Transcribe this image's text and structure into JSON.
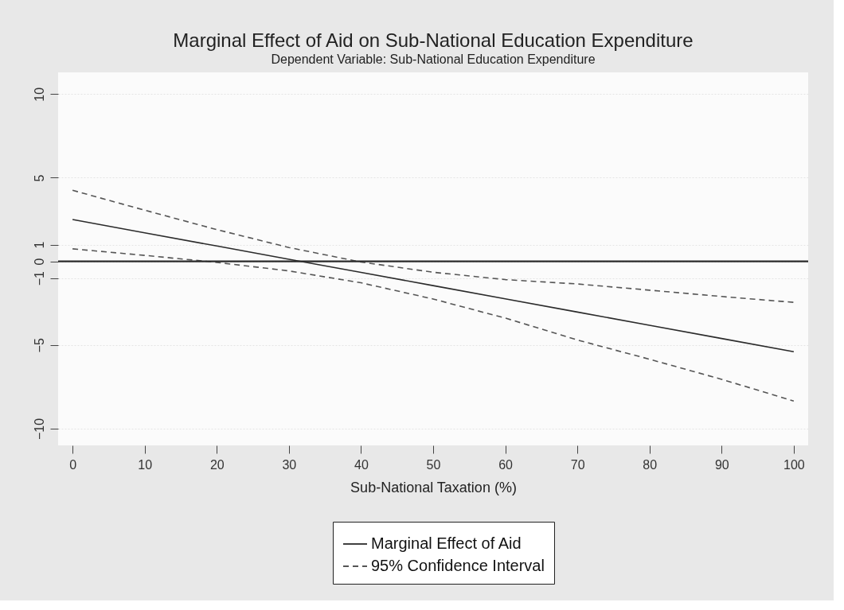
{
  "chart_data": {
    "type": "line",
    "title": "Marginal Effect of Aid on Sub-National Education Expenditure",
    "subtitle": "Dependent Variable: Sub-National Education Expenditure",
    "xlabel": "Sub-National Taxation (%)",
    "x": [
      0,
      10,
      20,
      30,
      40,
      50,
      60,
      70,
      80,
      90,
      100
    ],
    "series": [
      {
        "name": "Marginal Effect of Aid",
        "color": "#2b2b2b",
        "line_style": "solid",
        "values": [
          2.5,
          1.71,
          0.92,
          0.13,
          -0.66,
          -1.45,
          -2.24,
          -3.03,
          -3.82,
          -4.61,
          -5.4
        ]
      },
      {
        "name": "95% Confidence Interval",
        "color": "#555555",
        "line_style": "dashed",
        "values": [
          4.25,
          3.06,
          1.9,
          0.83,
          -0.04,
          -0.65,
          -1.09,
          -1.35,
          -1.72,
          -2.1,
          -2.45
        ]
      },
      {
        "color": "#555555",
        "line_style": "dashed",
        "values": [
          0.75,
          0.36,
          -0.06,
          -0.57,
          -1.28,
          -2.25,
          -3.39,
          -4.7,
          -5.85,
          -7.05,
          -8.35
        ]
      }
    ],
    "xlim": [
      -2,
      102
    ],
    "xticks": [
      0,
      10,
      20,
      30,
      40,
      50,
      60,
      70,
      80,
      90,
      100
    ],
    "ylim": [
      -11,
      11.3
    ],
    "yticks": [
      -10,
      -5,
      -1,
      0,
      1,
      5,
      10
    ],
    "ref_lines": [
      {
        "axis": "y",
        "value": 0,
        "color": "#2b2b2b"
      }
    ],
    "grid": "y",
    "legend": "bottom",
    "marker": "none"
  }
}
